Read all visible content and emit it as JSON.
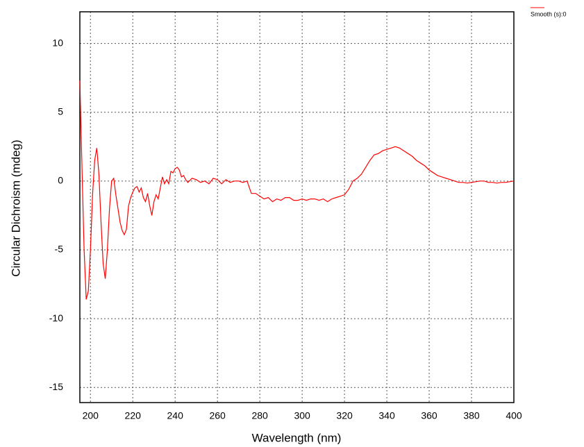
{
  "chart_data": {
    "type": "line",
    "x_label": "Wavelength (nm)",
    "y_label": "Circular Dichroism (mdeg)",
    "x": [
      195,
      196,
      197,
      198,
      199,
      200,
      201,
      202,
      203,
      204,
      205,
      206,
      207,
      208,
      209,
      210,
      211,
      212,
      213,
      214,
      215,
      216,
      217,
      218,
      219,
      220,
      221,
      222,
      223,
      224,
      225,
      226,
      227,
      228,
      229,
      230,
      231,
      232,
      233,
      234,
      235,
      236,
      237,
      238,
      239,
      240,
      241,
      242,
      243,
      244,
      245,
      246,
      248,
      250,
      252,
      254,
      256,
      258,
      260,
      262,
      264,
      266,
      268,
      270,
      272,
      274,
      276,
      278,
      280,
      282,
      284,
      286,
      288,
      290,
      292,
      294,
      296,
      298,
      300,
      302,
      304,
      306,
      308,
      310,
      312,
      314,
      316,
      318,
      320,
      322,
      324,
      326,
      328,
      330,
      332,
      334,
      336,
      338,
      340,
      342,
      344,
      346,
      348,
      350,
      352,
      354,
      356,
      358,
      360,
      362,
      364,
      366,
      368,
      370,
      372,
      374,
      376,
      378,
      380,
      382,
      384,
      386,
      388,
      390,
      392,
      394,
      396,
      398,
      400
    ],
    "series": [
      {
        "name": "Smooth (s):0",
        "color": "#ff0000",
        "values": [
          7.3,
          1,
          -5,
          -8.6,
          -8,
          -5,
          -1,
          1.5,
          2.4,
          0.5,
          -3,
          -6,
          -7.1,
          -5,
          -2,
          0,
          0.2,
          -1,
          -2,
          -3,
          -3.6,
          -3.9,
          -3.5,
          -1.8,
          -1.2,
          -0.8,
          -0.5,
          -0.4,
          -0.8,
          -0.5,
          -1.2,
          -1.5,
          -0.9,
          -1.8,
          -2.5,
          -1.5,
          -1.0,
          -1.3,
          -0.5,
          0.3,
          -0.2,
          0.1,
          -0.2,
          0.7,
          0.6,
          0.9,
          1.0,
          0.8,
          0.3,
          0.4,
          0.1,
          -0.1,
          0.2,
          0.1,
          -0.1,
          0.0,
          -0.2,
          0.2,
          0.1,
          -0.2,
          0.1,
          -0.1,
          0.0,
          0.0,
          -0.1,
          0.0,
          -0.9,
          -0.9,
          -1.1,
          -1.3,
          -1.2,
          -1.5,
          -1.3,
          -1.4,
          -1.2,
          -1.2,
          -1.4,
          -1.4,
          -1.3,
          -1.4,
          -1.3,
          -1.3,
          -1.4,
          -1.3,
          -1.5,
          -1.3,
          -1.2,
          -1.1,
          -1.0,
          -0.6,
          0.0,
          0.2,
          0.5,
          1.0,
          1.5,
          1.9,
          2.0,
          2.2,
          2.3,
          2.4,
          2.5,
          2.4,
          2.2,
          2.0,
          1.8,
          1.5,
          1.3,
          1.1,
          0.8,
          0.6,
          0.4,
          0.3,
          0.2,
          0.1,
          0.0,
          -0.1,
          -0.1,
          -0.15,
          -0.1,
          -0.05,
          0.0,
          0.0,
          -0.1,
          -0.1,
          -0.15,
          -0.1,
          -0.1,
          -0.05,
          0.0
        ]
      }
    ],
    "xlim": [
      195,
      400
    ],
    "ylim": [
      -16.1,
      12.3
    ],
    "xticks": [
      200,
      220,
      240,
      260,
      280,
      300,
      320,
      340,
      360,
      380,
      400
    ],
    "yticks": [
      -15,
      -10,
      -5,
      0,
      5,
      10
    ],
    "grid": true
  }
}
